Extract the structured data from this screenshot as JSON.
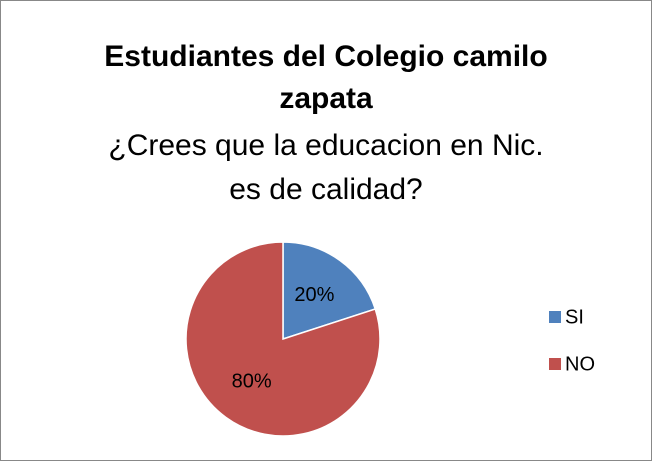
{
  "chart_data": {
    "type": "pie",
    "title": "Estudiantes del Colegio camilo zapata",
    "subtitle": "¿Crees que la educacion en Nic. es de calidad?",
    "categories": [
      "SI",
      "NO"
    ],
    "values": [
      20,
      80
    ],
    "value_labels": [
      "20%",
      "80%"
    ],
    "colors": [
      "#4f81bd",
      "#c0504d"
    ],
    "legend": "right"
  }
}
